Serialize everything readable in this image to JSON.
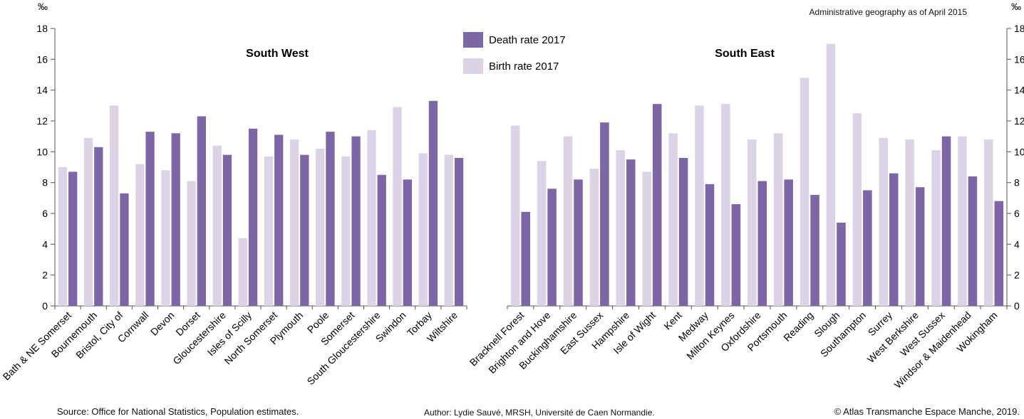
{
  "note": "Administrative geography as of April 2015",
  "footer": {
    "source": "Source: Office for National Statistics, Population estimates.",
    "author": "Author: Lydie Sauvé, MRSH, Université de Caen Normandie.",
    "copyright": "© Atlas Transmanche Espace Manche, 2019."
  },
  "colors": {
    "death": "#7e66a6",
    "birth": "#dcd4e6",
    "axis": "#555555"
  },
  "legend": {
    "position": "top-center",
    "death_label": "Death rate 2017",
    "birth_label": "Birth rate 2017"
  },
  "chart_data": [
    {
      "type": "bar",
      "title": "South West",
      "ylabel": "‰",
      "ylim": [
        0,
        18
      ],
      "yticks": [
        0,
        2,
        4,
        6,
        8,
        10,
        12,
        14,
        16,
        18
      ],
      "categories": [
        "Bath & NE Somerset",
        "Bournemouth",
        "Bristol, City of",
        "Cornwall",
        "Devon",
        "Dorset",
        "Gloucestershire",
        "Isles of Scilly",
        "North Somerset",
        "Plymouth",
        "Poole",
        "Somerset",
        "South Gloucestershire",
        "Swindon",
        "Torbay",
        "Wiltshire"
      ],
      "series": [
        {
          "name": "Birth rate 2017",
          "values": [
            9.0,
            10.9,
            13.0,
            9.2,
            8.8,
            8.1,
            10.4,
            4.4,
            9.7,
            10.8,
            10.2,
            9.7,
            11.4,
            12.9,
            9.9,
            9.8
          ]
        },
        {
          "name": "Death rate 2017",
          "values": [
            8.7,
            10.3,
            7.3,
            11.3,
            11.2,
            12.3,
            9.8,
            11.5,
            11.1,
            9.8,
            11.3,
            11.0,
            8.5,
            8.2,
            13.3,
            9.6
          ]
        }
      ]
    },
    {
      "type": "bar",
      "title": "South East",
      "ylabel": "‰",
      "ylim": [
        0,
        18
      ],
      "yticks": [
        0,
        2,
        4,
        6,
        8,
        10,
        12,
        14,
        16,
        18
      ],
      "categories": [
        "Bracknell Forest",
        "Brighton and Hove",
        "Buckinghamshire",
        "East Sussex",
        "Hampshire",
        "Isle of Wight",
        "Kent",
        "Medway",
        "Milton Keynes",
        "Oxfordshire",
        "Portsmouth",
        "Reading",
        "Slough",
        "Southampton",
        "Surrey",
        "West Berkshire",
        "West Sussex",
        "Windsor & Maidenhead",
        "Wokingham"
      ],
      "series": [
        {
          "name": "Birth rate 2017",
          "values": [
            11.7,
            9.4,
            11.0,
            8.9,
            10.1,
            8.7,
            11.2,
            13.0,
            13.1,
            10.8,
            11.2,
            14.8,
            17.0,
            12.5,
            10.9,
            10.8,
            10.1,
            11.0,
            10.8
          ]
        },
        {
          "name": "Death rate 2017",
          "values": [
            6.1,
            7.6,
            8.2,
            11.9,
            9.5,
            13.1,
            9.6,
            7.9,
            6.6,
            8.1,
            8.2,
            7.2,
            5.4,
            7.5,
            8.6,
            7.7,
            11.0,
            8.4,
            6.8
          ]
        }
      ]
    }
  ]
}
